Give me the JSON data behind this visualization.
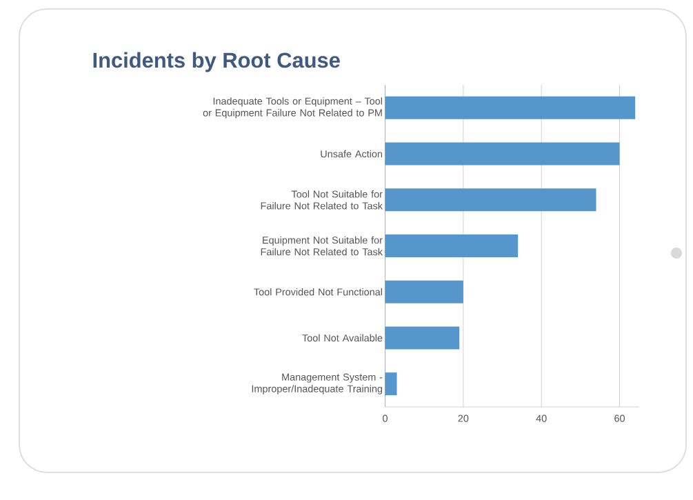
{
  "chart_data": {
    "type": "bar",
    "orientation": "horizontal",
    "title": "Incidents by Root Cause",
    "categories": [
      "Inadequate Tools or Equipment – Tool or Equipment Failure Not Related to PM",
      "Unsafe Action",
      "Tool Not Suitable for Failure Not Related to Task",
      "Equipment Not Suitable for Failure Not Related to Task",
      "Tool Provided Not Functional",
      "Tool Not Available",
      "Management System - Improper/Inadequate Training"
    ],
    "values": [
      64,
      60,
      54,
      34,
      20,
      19,
      3
    ],
    "color": "#5597cc",
    "xlim": [
      0,
      65
    ],
    "xticks": [
      0,
      20,
      40,
      60
    ],
    "grid": "x"
  }
}
